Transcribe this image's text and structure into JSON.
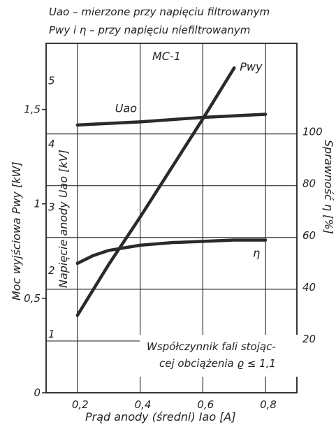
{
  "header": {
    "line1": "Uao – mierzone przy napięciu filtrowanym",
    "line2": "Pwy i η – przy napięciu niefiltrowanym"
  },
  "chart_data": {
    "type": "line",
    "model_label": "MC-1",
    "note_line1": "Współczynnik fali stojąc-",
    "note_line2": "cej obciążenia ϱ ≤ 1,1",
    "xlabel": "Prąd anody (średni) Iao [A]",
    "xlim": [
      0.1,
      0.9
    ],
    "x_ticks": [
      0.2,
      0.4,
      0.6,
      0.8
    ],
    "x_tick_labels": [
      "0,2",
      "0,4",
      "0,6",
      "0,8"
    ],
    "grid": true,
    "axes": {
      "power": {
        "label": "Moc wyjściowa Pwy [kW]",
        "range": [
          0,
          1.85
        ],
        "ticks": [
          0,
          0.5,
          1,
          1.5
        ],
        "tick_labels": [
          "0",
          "0,5",
          "1",
          "1,5"
        ]
      },
      "voltage": {
        "label": "Napięcie anody Uao [kV]",
        "range": [
          0.07,
          5.59
        ],
        "ticks": [
          1,
          2,
          3,
          4,
          5
        ],
        "tick_labels": [
          "1",
          "2",
          "3",
          "4",
          "5"
        ]
      },
      "efficiency": {
        "label": "Sprawność η [%]",
        "range": [
          0,
          135
        ],
        "ticks": [
          20,
          40,
          60,
          80,
          100
        ],
        "tick_labels": [
          "20",
          "40",
          "60",
          "80",
          "100"
        ]
      }
    },
    "series": [
      {
        "name": "Pwy",
        "axis": "power",
        "x": [
          0.2,
          0.3,
          0.4,
          0.5,
          0.6,
          0.7
        ],
        "y": [
          0.41,
          0.68,
          0.93,
          1.19,
          1.45,
          1.72
        ]
      },
      {
        "name": "Uao",
        "axis": "voltage",
        "x": [
          0.2,
          0.4,
          0.6,
          0.8
        ],
        "y": [
          4.3,
          4.35,
          4.42,
          4.47
        ]
      },
      {
        "name": "η",
        "axis": "efficiency",
        "x": [
          0.2,
          0.25,
          0.3,
          0.4,
          0.5,
          0.6,
          0.7,
          0.8
        ],
        "y": [
          50,
          53,
          55,
          57,
          58,
          58.5,
          59,
          59
        ]
      }
    ],
    "series_labels": [
      "Pwy",
      "Uao",
      "η"
    ]
  }
}
